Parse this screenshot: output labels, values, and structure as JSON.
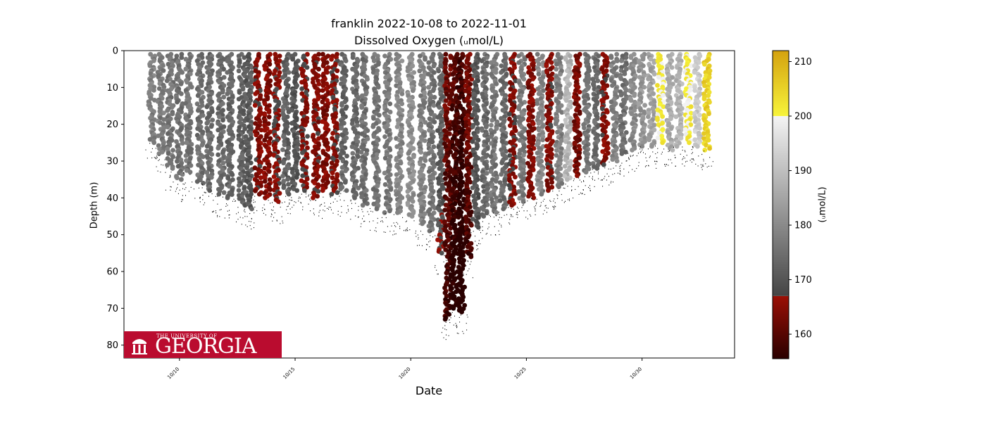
{
  "chart_data": {
    "type": "scatter",
    "title": "franklin 2022-10-08 to 2022-11-01",
    "subtitle": "Dissolved Oxygen (ᵤmol/L)",
    "xlabel": "Date",
    "ylabel": "Depth (m)",
    "x_ticks": [
      "10/10",
      "10/15",
      "10/20",
      "10/25",
      "10/30"
    ],
    "x_tick_days": [
      10,
      15,
      20,
      25,
      30
    ],
    "xlim_days": [
      7.6,
      34.0
    ],
    "y_ticks": [
      0,
      10,
      20,
      30,
      40,
      50,
      60,
      70,
      80
    ],
    "ylim": [
      83.5,
      0
    ],
    "y_inverted": true,
    "colorbar": {
      "label": "(ᵤmol/L)",
      "range": [
        155.5,
        212
      ],
      "ticks": [
        160,
        170,
        180,
        190,
        200,
        210
      ],
      "segments": [
        {
          "from": 155.5,
          "to": 167,
          "colors": [
            "#2a0000",
            "#9b0f05"
          ]
        },
        {
          "from": 167,
          "to": 200,
          "colors": [
            "#454545",
            "#f4f4f4"
          ]
        },
        {
          "from": 200,
          "to": 212,
          "colors": [
            "#f7f43a",
            "#d4a20f"
          ]
        }
      ]
    },
    "profiles": [
      {
        "day": 8.8,
        "max_depth": 25,
        "do": 178
      },
      {
        "day": 9.2,
        "max_depth": 28,
        "do": 177
      },
      {
        "day": 9.6,
        "max_depth": 32,
        "do": 176
      },
      {
        "day": 10.0,
        "max_depth": 35,
        "do": 175
      },
      {
        "day": 10.4,
        "max_depth": 33,
        "do": 176
      },
      {
        "day": 10.9,
        "max_depth": 36,
        "do": 175
      },
      {
        "day": 11.3,
        "max_depth": 38,
        "do": 174
      },
      {
        "day": 11.8,
        "max_depth": 39,
        "do": 174
      },
      {
        "day": 12.2,
        "max_depth": 40,
        "do": 173
      },
      {
        "day": 12.7,
        "max_depth": 42,
        "do": 172
      },
      {
        "day": 13.0,
        "max_depth": 43,
        "do": 171
      },
      {
        "day": 13.4,
        "max_depth": 39,
        "do": 165
      },
      {
        "day": 13.8,
        "max_depth": 40,
        "do": 164
      },
      {
        "day": 14.2,
        "max_depth": 41,
        "do": 166
      },
      {
        "day": 14.6,
        "max_depth": 39,
        "do": 172
      },
      {
        "day": 15.0,
        "max_depth": 38,
        "do": 170
      },
      {
        "day": 15.4,
        "max_depth": 38,
        "do": 166
      },
      {
        "day": 15.9,
        "max_depth": 40,
        "do": 165
      },
      {
        "day": 16.3,
        "max_depth": 38,
        "do": 164
      },
      {
        "day": 16.7,
        "max_depth": 39,
        "do": 166
      },
      {
        "day": 17.1,
        "max_depth": 38,
        "do": 173
      },
      {
        "day": 17.6,
        "max_depth": 40,
        "do": 174
      },
      {
        "day": 18.0,
        "max_depth": 42,
        "do": 175
      },
      {
        "day": 18.5,
        "max_depth": 43,
        "do": 176
      },
      {
        "day": 19.0,
        "max_depth": 44,
        "do": 177
      },
      {
        "day": 19.5,
        "max_depth": 44,
        "do": 179
      },
      {
        "day": 20.0,
        "max_depth": 45,
        "do": 181
      },
      {
        "day": 20.5,
        "max_depth": 47,
        "do": 178
      },
      {
        "day": 20.9,
        "max_depth": 49,
        "do": 176
      },
      {
        "day": 21.3,
        "max_depth": 55,
        "do": 174
      },
      {
        "day": 21.6,
        "max_depth": 73,
        "do": 163
      },
      {
        "day": 21.9,
        "max_depth": 70,
        "do": 160
      },
      {
        "day": 22.2,
        "max_depth": 71,
        "do": 158
      },
      {
        "day": 22.5,
        "max_depth": 56,
        "do": 164
      },
      {
        "day": 22.8,
        "max_depth": 48,
        "do": 170
      },
      {
        "day": 23.2,
        "max_depth": 45,
        "do": 174
      },
      {
        "day": 23.6,
        "max_depth": 44,
        "do": 176
      },
      {
        "day": 24.0,
        "max_depth": 43,
        "do": 174
      },
      {
        "day": 24.4,
        "max_depth": 42,
        "do": 165
      },
      {
        "day": 24.8,
        "max_depth": 41,
        "do": 177
      },
      {
        "day": 25.2,
        "max_depth": 40,
        "do": 164
      },
      {
        "day": 25.6,
        "max_depth": 39,
        "do": 179
      },
      {
        "day": 26.0,
        "max_depth": 38,
        "do": 165
      },
      {
        "day": 26.4,
        "max_depth": 37,
        "do": 178
      },
      {
        "day": 26.8,
        "max_depth": 35,
        "do": 188
      },
      {
        "day": 27.2,
        "max_depth": 34,
        "do": 163
      },
      {
        "day": 27.6,
        "max_depth": 33,
        "do": 176
      },
      {
        "day": 28.0,
        "max_depth": 32,
        "do": 174
      },
      {
        "day": 28.4,
        "max_depth": 31,
        "do": 165
      },
      {
        "day": 28.8,
        "max_depth": 30,
        "do": 178
      },
      {
        "day": 29.2,
        "max_depth": 28,
        "do": 175
      },
      {
        "day": 29.6,
        "max_depth": 27,
        "do": 180
      },
      {
        "day": 30.0,
        "max_depth": 26,
        "do": 182
      },
      {
        "day": 30.4,
        "max_depth": 26,
        "do": 184
      },
      {
        "day": 30.8,
        "max_depth": 25,
        "do": 201
      },
      {
        "day": 31.2,
        "max_depth": 27,
        "do": 186
      },
      {
        "day": 31.6,
        "max_depth": 26,
        "do": 188
      },
      {
        "day": 32.0,
        "max_depth": 25,
        "do": 201
      },
      {
        "day": 32.4,
        "max_depth": 26,
        "do": 192
      },
      {
        "day": 32.8,
        "max_depth": 27,
        "do": 205
      }
    ]
  },
  "logo": {
    "small_text": "THE UNIVERSITY OF",
    "big_text": "GEORGIA",
    "background": "#ba0c2f"
  }
}
